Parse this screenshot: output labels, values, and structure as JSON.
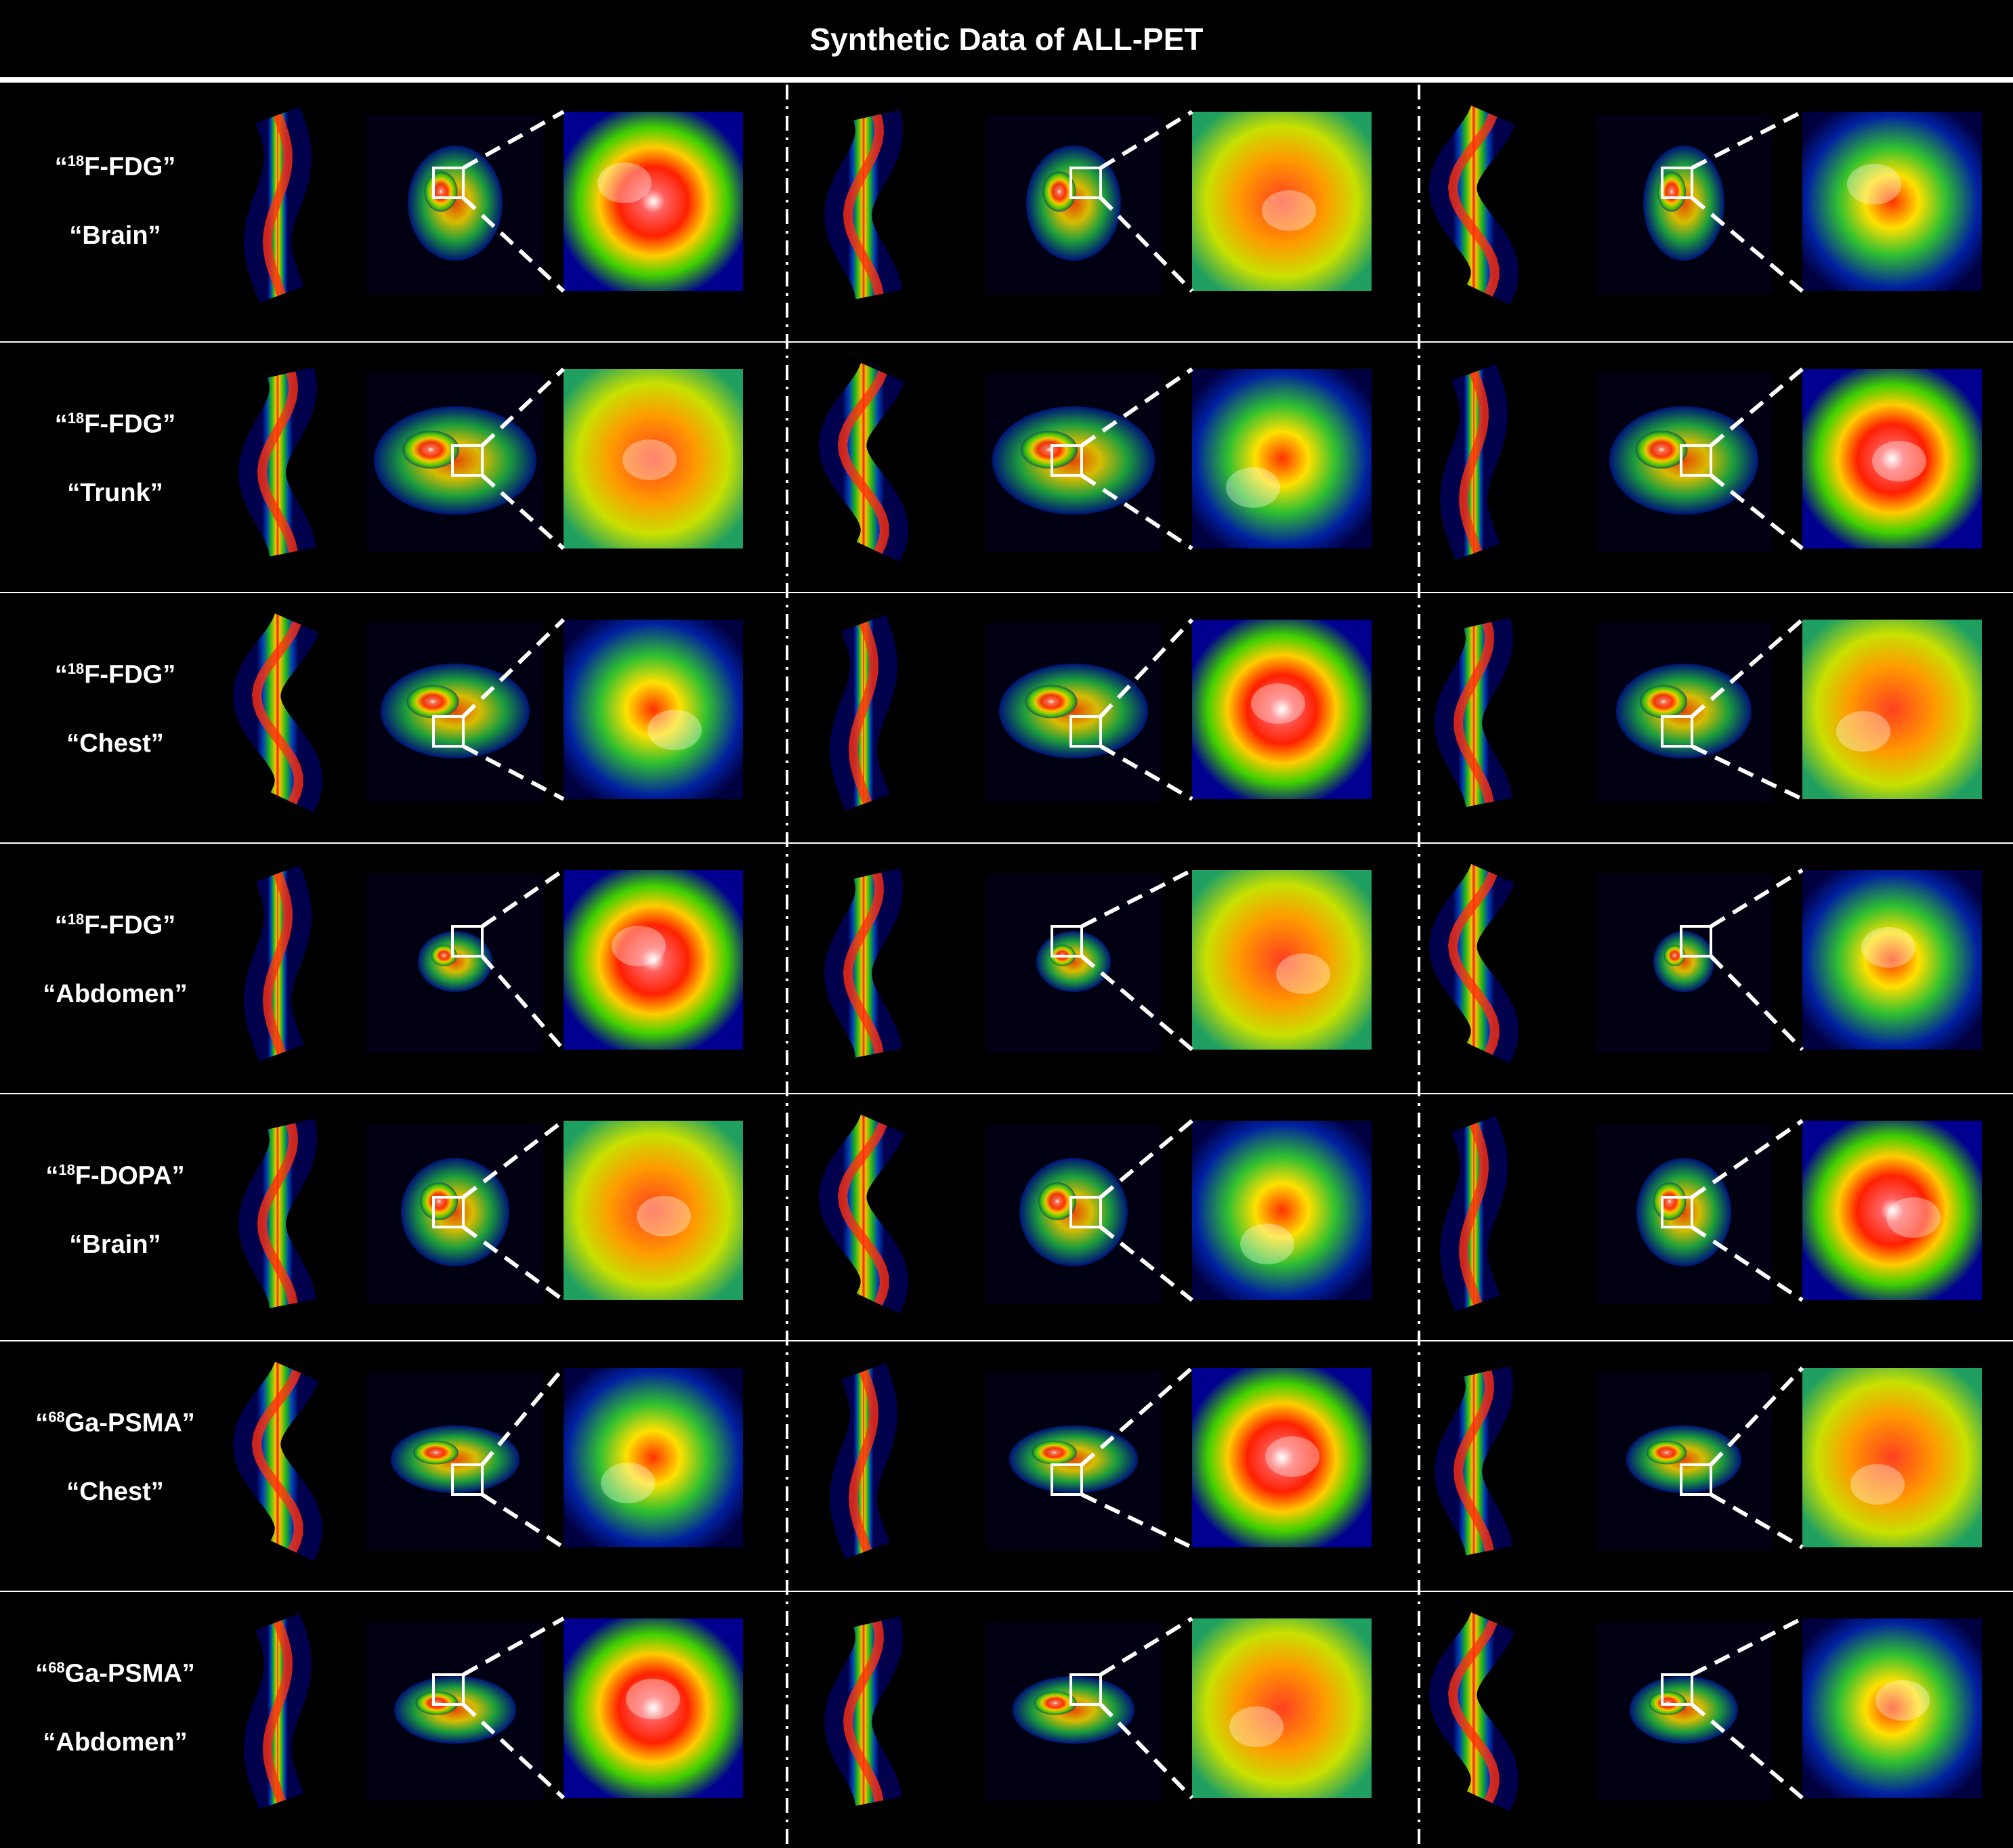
{
  "title": "Synthetic Data of ALL-PET",
  "rows": [
    {
      "tracer_prefix": "“",
      "tracer_mass": "18",
      "tracer_rest": "F-FDG”",
      "region": "“Brain”"
    },
    {
      "tracer_prefix": "“",
      "tracer_mass": "18",
      "tracer_rest": "F-FDG”",
      "region": "“Trunk”"
    },
    {
      "tracer_prefix": "“",
      "tracer_mass": "18",
      "tracer_rest": "F-FDG”",
      "region": "“Chest”"
    },
    {
      "tracer_prefix": "“",
      "tracer_mass": "18",
      "tracer_rest": "F-FDG”",
      "region": "“Abdomen”"
    },
    {
      "tracer_prefix": "“",
      "tracer_mass": "18",
      "tracer_rest": "F-DOPA”",
      "region": "“Brain”"
    },
    {
      "tracer_prefix": "“",
      "tracer_mass": "68",
      "tracer_rest": "Ga-PSMA”",
      "region": "“Chest”"
    },
    {
      "tracer_prefix": "“",
      "tracer_mass": "68",
      "tracer_rest": "Ga-PSMA”",
      "region": "“Abdomen”"
    }
  ],
  "colors": {
    "background": "#000000",
    "divider": "#ffffff",
    "pet_low": "#00008c",
    "pet_mid": "#00c800",
    "pet_high": "#ffff00",
    "pet_peak": "#ff0000",
    "pet_max": "#ffffff"
  }
}
